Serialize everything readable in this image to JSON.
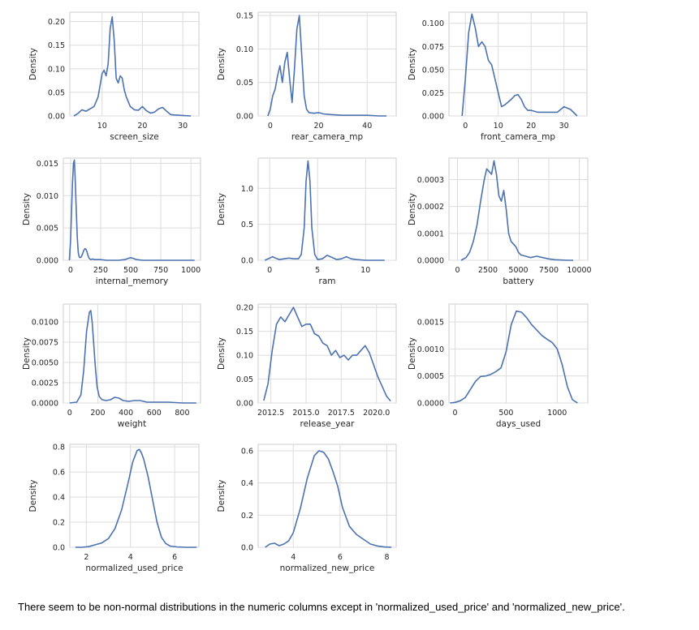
{
  "styles": {
    "line_color": "#4c72b0",
    "grid_color": "#dcdcdc",
    "axis_color": "#cccccc"
  },
  "note": "There seem to be non-normal distributions in the numeric columns except in 'normalized_used_price' and 'normalized_new_price'.",
  "chart_data": [
    {
      "type": "line",
      "xlabel": "screen_size",
      "ylabel": "Density",
      "xlim": [
        2,
        34
      ],
      "ylim": [
        0,
        0.22
      ],
      "xticks": [
        {
          "v": 10,
          "l": "10"
        },
        {
          "v": 20,
          "l": "20"
        },
        {
          "v": 30,
          "l": "30"
        }
      ],
      "yticks": [
        {
          "v": 0,
          "l": "0.00"
        },
        {
          "v": 0.05,
          "l": "0.05"
        },
        {
          "v": 0.1,
          "l": "0.10"
        },
        {
          "v": 0.15,
          "l": "0.15"
        },
        {
          "v": 0.2,
          "l": "0.20"
        }
      ],
      "x": [
        3,
        4,
        5,
        6,
        7,
        8,
        9,
        10,
        10.5,
        11,
        11.5,
        12,
        12.5,
        13,
        13.5,
        14,
        14.5,
        15,
        15.5,
        16,
        17,
        18,
        19,
        20,
        21,
        22,
        23,
        24,
        25,
        26,
        27,
        28,
        30,
        32
      ],
      "y": [
        0.0,
        0.005,
        0.013,
        0.01,
        0.015,
        0.02,
        0.04,
        0.09,
        0.097,
        0.085,
        0.11,
        0.185,
        0.21,
        0.16,
        0.08,
        0.07,
        0.085,
        0.08,
        0.055,
        0.04,
        0.02,
        0.013,
        0.012,
        0.02,
        0.011,
        0.006,
        0.008,
        0.015,
        0.018,
        0.01,
        0.003,
        0.002,
        0.001,
        0.0
      ]
    },
    {
      "type": "line",
      "xlabel": "rear_camera_mp",
      "ylabel": "Density",
      "xlim": [
        -5,
        52
      ],
      "ylim": [
        0,
        0.155
      ],
      "xticks": [
        {
          "v": 0,
          "l": "0"
        },
        {
          "v": 20,
          "l": "20"
        },
        {
          "v": 40,
          "l": "40"
        }
      ],
      "yticks": [
        {
          "v": 0,
          "l": "0.00"
        },
        {
          "v": 0.05,
          "l": "0.05"
        },
        {
          "v": 0.1,
          "l": "0.10"
        },
        {
          "v": 0.15,
          "l": "0.15"
        }
      ],
      "x": [
        -1,
        0,
        1,
        2,
        3,
        4,
        5,
        6,
        7,
        8,
        9,
        10,
        11,
        12,
        13,
        14,
        15,
        16,
        18,
        20,
        22,
        25,
        30,
        35,
        40,
        45,
        48
      ],
      "y": [
        0.0,
        0.01,
        0.03,
        0.04,
        0.06,
        0.075,
        0.05,
        0.08,
        0.095,
        0.055,
        0.02,
        0.07,
        0.13,
        0.15,
        0.09,
        0.03,
        0.01,
        0.005,
        0.004,
        0.005,
        0.003,
        0.002,
        0.001,
        0.001,
        0.001,
        0.0,
        0.0
      ]
    },
    {
      "type": "line",
      "xlabel": "front_camera_mp",
      "ylabel": "Density",
      "xlim": [
        -5,
        37
      ],
      "ylim": [
        0,
        0.112
      ],
      "xticks": [
        {
          "v": 0,
          "l": "0"
        },
        {
          "v": 10,
          "l": "10"
        },
        {
          "v": 20,
          "l": "20"
        },
        {
          "v": 30,
          "l": "30"
        }
      ],
      "yticks": [
        {
          "v": 0,
          "l": "0.000"
        },
        {
          "v": 0.025,
          "l": "0.025"
        },
        {
          "v": 0.05,
          "l": "0.050"
        },
        {
          "v": 0.075,
          "l": "0.075"
        },
        {
          "v": 0.1,
          "l": "0.100"
        }
      ],
      "x": [
        -1,
        0,
        1,
        2,
        3,
        4,
        5,
        6,
        7,
        8,
        9,
        10,
        11,
        12,
        13,
        14,
        15,
        16,
        17,
        18,
        19,
        20,
        22,
        24,
        26,
        28,
        30,
        32,
        34
      ],
      "y": [
        0.0,
        0.04,
        0.09,
        0.11,
        0.095,
        0.075,
        0.08,
        0.075,
        0.06,
        0.055,
        0.04,
        0.025,
        0.01,
        0.012,
        0.015,
        0.018,
        0.022,
        0.023,
        0.018,
        0.01,
        0.006,
        0.006,
        0.004,
        0.004,
        0.004,
        0.004,
        0.01,
        0.007,
        0.0
      ]
    },
    {
      "type": "line",
      "xlabel": "internal_memory",
      "ylabel": "Density",
      "xlim": [
        -60,
        1080
      ],
      "ylim": [
        0,
        0.0158
      ],
      "xticks": [
        {
          "v": 0,
          "l": "0"
        },
        {
          "v": 250,
          "l": "250"
        },
        {
          "v": 500,
          "l": "500"
        },
        {
          "v": 750,
          "l": "750"
        },
        {
          "v": 1000,
          "l": "1000"
        }
      ],
      "yticks": [
        {
          "v": 0,
          "l": "0.000"
        },
        {
          "v": 0.005,
          "l": "0.005"
        },
        {
          "v": 0.01,
          "l": "0.010"
        },
        {
          "v": 0.015,
          "l": "0.015"
        }
      ],
      "x": [
        -10,
        0,
        8,
        16,
        24,
        32,
        40,
        48,
        56,
        64,
        72,
        80,
        88,
        96,
        104,
        112,
        120,
        128,
        136,
        144,
        152,
        160,
        170,
        180,
        200,
        250,
        300,
        350,
        400,
        450,
        480,
        500,
        520,
        550,
        600,
        650,
        700,
        800,
        900,
        1000,
        1030
      ],
      "y": [
        0.0,
        0.003,
        0.0075,
        0.012,
        0.015,
        0.0155,
        0.012,
        0.0075,
        0.0035,
        0.0012,
        0.0005,
        0.0004,
        0.0005,
        0.0008,
        0.0012,
        0.0016,
        0.0018,
        0.0017,
        0.0013,
        0.0008,
        0.0004,
        0.0002,
        0.0001,
        0.0002,
        0.0001,
        0.0001,
        0.0,
        0.0,
        0.0,
        0.0001,
        0.0003,
        0.0004,
        0.0003,
        0.0001,
        0.0,
        0.0,
        0.0,
        0.0,
        0.0,
        0.0,
        0.0
      ]
    },
    {
      "type": "line",
      "xlabel": "ram",
      "ylabel": "Density",
      "xlim": [
        -1.2,
        13.2
      ],
      "ylim": [
        0,
        1.42
      ],
      "xticks": [
        {
          "v": 0,
          "l": "0"
        },
        {
          "v": 5,
          "l": "5"
        },
        {
          "v": 10,
          "l": "10"
        }
      ],
      "yticks": [
        {
          "v": 0,
          "l": "0.0"
        },
        {
          "v": 0.5,
          "l": "0.5"
        },
        {
          "v": 1,
          "l": "1.0"
        }
      ],
      "x": [
        -0.5,
        0,
        0.3,
        0.6,
        1,
        1.5,
        2,
        2.5,
        3,
        3.3,
        3.6,
        3.8,
        4,
        4.2,
        4.4,
        4.7,
        5,
        5.5,
        6,
        6.5,
        7,
        7.5,
        8,
        8.5,
        9,
        10,
        11,
        12
      ],
      "y": [
        0.0,
        0.03,
        0.05,
        0.03,
        0.01,
        0.02,
        0.03,
        0.02,
        0.02,
        0.08,
        0.45,
        1.1,
        1.38,
        1.1,
        0.45,
        0.08,
        0.01,
        0.02,
        0.07,
        0.04,
        0.01,
        0.02,
        0.05,
        0.02,
        0.01,
        0.0,
        0.0,
        0.0
      ]
    },
    {
      "type": "line",
      "xlabel": "battery",
      "ylabel": "Density",
      "xlim": [
        -700,
        10700
      ],
      "ylim": [
        0,
        0.00038
      ],
      "xticks": [
        {
          "v": 0,
          "l": "0"
        },
        {
          "v": 2500,
          "l": "2500"
        },
        {
          "v": 5000,
          "l": "5000"
        },
        {
          "v": 7500,
          "l": "7500"
        },
        {
          "v": 10000,
          "l": "10000"
        }
      ],
      "yticks": [
        {
          "v": 0,
          "l": "0.0000"
        },
        {
          "v": 0.0001,
          "l": "0.0001"
        },
        {
          "v": 0.0002,
          "l": "0.0002"
        },
        {
          "v": 0.0003,
          "l": "0.0003"
        }
      ],
      "x": [
        300,
        700,
        1000,
        1300,
        1600,
        1900,
        2200,
        2400,
        2600,
        2800,
        3000,
        3200,
        3400,
        3600,
        3800,
        4000,
        4200,
        4400,
        4600,
        4800,
        5000,
        5200,
        5600,
        6000,
        6500,
        7000,
        7500,
        8000,
        9000,
        9500
      ],
      "y": [
        0.0,
        1e-05,
        3e-05,
        7e-05,
        0.00013,
        0.00022,
        0.0003,
        0.00034,
        0.00033,
        0.00032,
        0.00037,
        0.00032,
        0.00024,
        0.00022,
        0.00026,
        0.00019,
        0.0001,
        7e-05,
        6e-05,
        5e-05,
        3e-05,
        2e-05,
        1.5e-05,
        1e-05,
        1.5e-05,
        1e-05,
        5e-06,
        2e-06,
        0.0,
        0.0
      ]
    },
    {
      "type": "line",
      "xlabel": "weight",
      "ylabel": "Density",
      "xlim": [
        -45,
        930
      ],
      "ylim": [
        0,
        0.0122
      ],
      "xticks": [
        {
          "v": 0,
          "l": "0"
        },
        {
          "v": 200,
          "l": "200"
        },
        {
          "v": 400,
          "l": "400"
        },
        {
          "v": 600,
          "l": "600"
        },
        {
          "v": 800,
          "l": "800"
        }
      ],
      "yticks": [
        {
          "v": 0,
          "l": "0.0000"
        },
        {
          "v": 0.0025,
          "l": "0.0025"
        },
        {
          "v": 0.005,
          "l": "0.0050"
        },
        {
          "v": 0.0075,
          "l": "0.0075"
        },
        {
          "v": 0.01,
          "l": "0.0100"
        }
      ],
      "x": [
        0,
        50,
        80,
        100,
        120,
        140,
        150,
        160,
        170,
        180,
        195,
        210,
        230,
        260,
        290,
        320,
        350,
        380,
        420,
        460,
        500,
        550,
        600,
        700,
        800,
        900
      ],
      "y": [
        0.0,
        0.0001,
        0.001,
        0.004,
        0.0088,
        0.0112,
        0.0114,
        0.01,
        0.0075,
        0.005,
        0.002,
        0.0008,
        0.0004,
        0.0003,
        0.0004,
        0.0007,
        0.0006,
        0.0003,
        0.0002,
        0.0003,
        0.0003,
        0.0001,
        0.0001,
        0.0001,
        0.0,
        0.0
      ]
    },
    {
      "type": "line",
      "xlabel": "release_year",
      "ylabel": "Density",
      "xlim": [
        2011.6,
        2021.4
      ],
      "ylim": [
        0,
        0.207
      ],
      "xticks": [
        {
          "v": 2012.5,
          "l": "2012.5"
        },
        {
          "v": 2015,
          "l": "2015.0"
        },
        {
          "v": 2017.5,
          "l": "2017.5"
        },
        {
          "v": 2020,
          "l": "2020.0"
        }
      ],
      "yticks": [
        {
          "v": 0,
          "l": "0.00"
        },
        {
          "v": 0.05,
          "l": "0.05"
        },
        {
          "v": 0.1,
          "l": "0.10"
        },
        {
          "v": 0.15,
          "l": "0.15"
        },
        {
          "v": 0.2,
          "l": "0.20"
        }
      ],
      "x": [
        2012,
        2012.3,
        2012.6,
        2012.9,
        2013.2,
        2013.5,
        2013.8,
        2014.1,
        2014.4,
        2014.7,
        2015,
        2015.3,
        2015.6,
        2015.9,
        2016.2,
        2016.5,
        2016.8,
        2017.1,
        2017.4,
        2017.7,
        2018,
        2018.3,
        2018.6,
        2018.9,
        2019.2,
        2019.5,
        2019.8,
        2020.1,
        2020.4,
        2020.7,
        2021
      ],
      "y": [
        0.005,
        0.04,
        0.11,
        0.165,
        0.18,
        0.17,
        0.185,
        0.2,
        0.18,
        0.16,
        0.165,
        0.165,
        0.145,
        0.14,
        0.125,
        0.12,
        0.1,
        0.11,
        0.095,
        0.1,
        0.09,
        0.1,
        0.1,
        0.11,
        0.12,
        0.105,
        0.08,
        0.055,
        0.035,
        0.015,
        0.004
      ]
    },
    {
      "type": "line",
      "xlabel": "days_used",
      "ylabel": "Density",
      "xlim": [
        -60,
        1300
      ],
      "ylim": [
        0,
        0.00183
      ],
      "xticks": [
        {
          "v": 0,
          "l": "0"
        },
        {
          "v": 500,
          "l": "500"
        },
        {
          "v": 1000,
          "l": "1000"
        }
      ],
      "yticks": [
        {
          "v": 0,
          "l": "0.0000"
        },
        {
          "v": 0.0005,
          "l": "0.0005"
        },
        {
          "v": 0.001,
          "l": "0.0010"
        },
        {
          "v": 0.0015,
          "l": "0.0015"
        }
      ],
      "x": [
        -50,
        0,
        50,
        100,
        150,
        200,
        250,
        300,
        350,
        400,
        450,
        500,
        550,
        600,
        650,
        700,
        750,
        800,
        850,
        900,
        950,
        1000,
        1050,
        1100,
        1150,
        1200
      ],
      "y": [
        0.0,
        1e-05,
        4e-05,
        0.0001,
        0.00025,
        0.0004,
        0.00049,
        0.0005,
        0.00053,
        0.00058,
        0.00065,
        0.00095,
        0.00145,
        0.0017,
        0.00168,
        0.00158,
        0.00145,
        0.00135,
        0.00125,
        0.00118,
        0.00112,
        0.001,
        0.0007,
        0.0003,
        6e-05,
        0.0
      ]
    },
    {
      "type": "line",
      "xlabel": "normalized_used_price",
      "ylabel": "Density",
      "xlim": [
        1.25,
        7.1
      ],
      "ylim": [
        0,
        0.82
      ],
      "xticks": [
        {
          "v": 2,
          "l": "2"
        },
        {
          "v": 4,
          "l": "4"
        },
        {
          "v": 6,
          "l": "6"
        }
      ],
      "yticks": [
        {
          "v": 0,
          "l": "0.0"
        },
        {
          "v": 0.2,
          "l": "0.2"
        },
        {
          "v": 0.4,
          "l": "0.4"
        },
        {
          "v": 0.6,
          "l": "0.6"
        },
        {
          "v": 0.8,
          "l": "0.8"
        }
      ],
      "x": [
        1.5,
        1.8,
        2.1,
        2.4,
        2.7,
        3.0,
        3.3,
        3.6,
        3.9,
        4.1,
        4.3,
        4.4,
        4.5,
        4.6,
        4.8,
        5.0,
        5.2,
        5.4,
        5.6,
        5.8,
        6.1,
        6.5,
        7.0
      ],
      "y": [
        0.0,
        0.0,
        0.005,
        0.02,
        0.035,
        0.07,
        0.15,
        0.3,
        0.52,
        0.68,
        0.77,
        0.78,
        0.75,
        0.7,
        0.56,
        0.38,
        0.2,
        0.08,
        0.03,
        0.01,
        0.003,
        0.0,
        0.0
      ]
    },
    {
      "type": "line",
      "xlabel": "normalized_new_price",
      "ylabel": "Density",
      "xlim": [
        2.5,
        8.4
      ],
      "ylim": [
        0,
        0.64
      ],
      "xticks": [
        {
          "v": 4,
          "l": "4"
        },
        {
          "v": 6,
          "l": "6"
        },
        {
          "v": 8,
          "l": "8"
        }
      ],
      "yticks": [
        {
          "v": 0,
          "l": "0.0"
        },
        {
          "v": 0.2,
          "l": "0.2"
        },
        {
          "v": 0.4,
          "l": "0.4"
        },
        {
          "v": 0.6,
          "l": "0.6"
        }
      ],
      "x": [
        2.8,
        3.0,
        3.2,
        3.4,
        3.6,
        3.8,
        4.0,
        4.3,
        4.6,
        4.9,
        5.1,
        5.3,
        5.5,
        5.7,
        5.9,
        6.1,
        6.4,
        6.7,
        7.0,
        7.3,
        7.6,
        7.9,
        8.2
      ],
      "y": [
        0.0,
        0.02,
        0.025,
        0.01,
        0.02,
        0.04,
        0.09,
        0.24,
        0.43,
        0.57,
        0.6,
        0.59,
        0.55,
        0.47,
        0.38,
        0.25,
        0.13,
        0.08,
        0.05,
        0.02,
        0.008,
        0.002,
        0.0
      ]
    }
  ]
}
